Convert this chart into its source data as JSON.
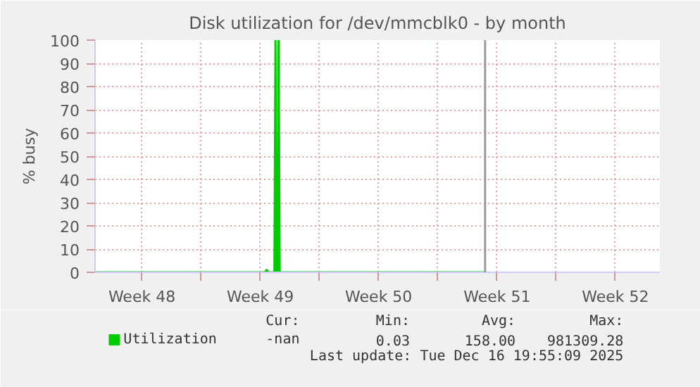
{
  "chart_data": {
    "type": "line",
    "title": "Disk utilization for /dev/mmcblk0 - by month",
    "ylabel": "% busy",
    "series": [
      {
        "name": "Utilization",
        "color": "#00cc00",
        "x": [
          "2025-11-24T17:30",
          "2025-12-04T18:00",
          "2025-12-04T21:00",
          "2025-12-05T00:00",
          "2025-12-05T08:00",
          "2025-12-05T09:30",
          "2025-12-05T11:00",
          "2025-12-05T12:30",
          "2025-12-05T14:00",
          "2025-12-05T15:30",
          "2025-12-17T19:00"
        ],
        "values": [
          0,
          0,
          1,
          0,
          0,
          100,
          0,
          0,
          100,
          0,
          0
        ]
      }
    ],
    "xlim": [
      "2025-11-24T17:30",
      "2025-12-28T03:00"
    ],
    "ylim": [
      0,
      100
    ],
    "xticks": [
      {
        "value": "2025-11-27T12:00",
        "label": "Week 48"
      },
      {
        "value": "2025-12-01",
        "label": null
      },
      {
        "value": "2025-12-04T12:00",
        "label": "Week 49"
      },
      {
        "value": "2025-12-08",
        "label": null
      },
      {
        "value": "2025-12-11T12:00",
        "label": "Week 50"
      },
      {
        "value": "2025-12-15",
        "label": null
      },
      {
        "value": "2025-12-18T12:00",
        "label": "Week 51"
      },
      {
        "value": "2025-12-22",
        "label": null
      },
      {
        "value": "2025-12-25T12:00",
        "label": "Week 52"
      }
    ],
    "yticks": [
      0,
      10,
      20,
      30,
      40,
      50,
      60,
      70,
      80,
      90,
      100
    ],
    "ref_lines": [
      {
        "axis": "x",
        "value": "2025-12-17T19:00",
        "color": "#999999"
      }
    ],
    "grid": true,
    "legend": "bottom",
    "annotations": [
      "Cur:",
      "Min:",
      "Avg:",
      "Max:",
      "-nan",
      "0.03",
      "158.00",
      "981309.28",
      "Last update: Tue Dec 16 19:55:09 2025"
    ]
  }
}
